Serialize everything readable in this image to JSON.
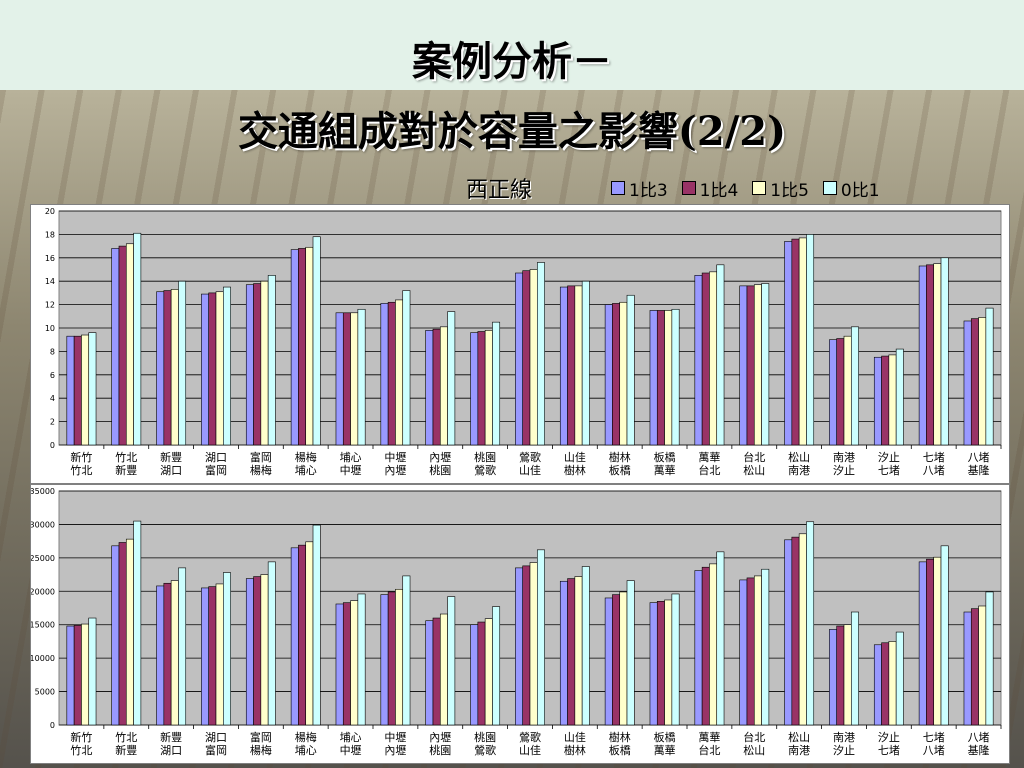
{
  "slide": {
    "title_line1": "案例分析－",
    "title_line2": "交通組成對於容量之影響(2/2)",
    "subtitle": "西正線"
  },
  "legend": [
    {
      "label": "1比3",
      "color": "#9999ff"
    },
    {
      "label": "1比4",
      "color": "#993366"
    },
    {
      "label": "1比5",
      "color": "#ffffcc"
    },
    {
      "label": "0比1",
      "color": "#ccffff"
    }
  ],
  "chart_data": [
    {
      "type": "bar",
      "categories": [
        [
          "新竹",
          "竹北"
        ],
        [
          "竹北",
          "新豐"
        ],
        [
          "新豐",
          "湖口"
        ],
        [
          "湖口",
          "富岡"
        ],
        [
          "富岡",
          "楊梅"
        ],
        [
          "楊梅",
          "埔心"
        ],
        [
          "埔心",
          "中壢"
        ],
        [
          "中壢",
          "內壢"
        ],
        [
          "內壢",
          "桃園"
        ],
        [
          "桃園",
          "鶯歌"
        ],
        [
          "鶯歌",
          "山佳"
        ],
        [
          "山佳",
          "樹林"
        ],
        [
          "樹林",
          "板橋"
        ],
        [
          "板橋",
          "萬華"
        ],
        [
          "萬華",
          "台北"
        ],
        [
          "台北",
          "松山"
        ],
        [
          "松山",
          "南港"
        ],
        [
          "南港",
          "汐止"
        ],
        [
          "汐止",
          "七堵"
        ],
        [
          "七堵",
          "八堵"
        ],
        [
          "八堵",
          "基隆"
        ]
      ],
      "series": [
        {
          "name": "1比3",
          "values": [
            9.3,
            16.8,
            13.1,
            12.9,
            13.7,
            16.7,
            11.3,
            12.1,
            9.8,
            9.6,
            14.7,
            13.5,
            12.0,
            11.5,
            14.5,
            13.6,
            17.4,
            9.0,
            7.5,
            15.3,
            10.6
          ]
        },
        {
          "name": "1比4",
          "values": [
            9.3,
            17.0,
            13.2,
            13.0,
            13.8,
            16.8,
            11.3,
            12.2,
            9.9,
            9.7,
            14.9,
            13.6,
            12.1,
            11.5,
            14.7,
            13.6,
            17.6,
            9.1,
            7.6,
            15.4,
            10.8
          ]
        },
        {
          "name": "1比5",
          "values": [
            9.4,
            17.2,
            13.3,
            13.1,
            14.0,
            16.9,
            11.3,
            12.4,
            10.1,
            9.8,
            15.0,
            13.6,
            12.2,
            11.5,
            14.8,
            13.7,
            17.7,
            9.3,
            7.7,
            15.5,
            10.9
          ]
        },
        {
          "name": "0比1",
          "values": [
            9.6,
            18.1,
            14.0,
            13.5,
            14.5,
            17.8,
            11.6,
            13.2,
            11.4,
            10.5,
            15.6,
            14.0,
            12.8,
            11.6,
            15.4,
            13.8,
            18.0,
            10.1,
            8.2,
            16.0,
            11.7
          ]
        }
      ],
      "ylim": [
        0,
        20
      ],
      "yticks": [
        "0",
        "2",
        "4",
        "6",
        "8",
        "10",
        "12",
        "14",
        "16",
        "18",
        "20"
      ],
      "grid": true
    },
    {
      "type": "bar",
      "categories": [
        [
          "新竹",
          "竹北"
        ],
        [
          "竹北",
          "新豐"
        ],
        [
          "新豐",
          "湖口"
        ],
        [
          "湖口",
          "富岡"
        ],
        [
          "富岡",
          "楊梅"
        ],
        [
          "楊梅",
          "埔心"
        ],
        [
          "埔心",
          "中壢"
        ],
        [
          "中壢",
          "內壢"
        ],
        [
          "內壢",
          "桃園"
        ],
        [
          "桃園",
          "鶯歌"
        ],
        [
          "鶯歌",
          "山佳"
        ],
        [
          "山佳",
          "樹林"
        ],
        [
          "樹林",
          "板橋"
        ],
        [
          "板橋",
          "萬華"
        ],
        [
          "萬華",
          "台北"
        ],
        [
          "台北",
          "松山"
        ],
        [
          "松山",
          "南港"
        ],
        [
          "南港",
          "汐止"
        ],
        [
          "汐止",
          "七堵"
        ],
        [
          "七堵",
          "八堵"
        ],
        [
          "八堵",
          "基隆"
        ]
      ],
      "series": [
        {
          "name": "1比3",
          "values": [
            14800,
            26800,
            20800,
            20500,
            21900,
            26500,
            18100,
            19500,
            15600,
            15000,
            23500,
            21500,
            19000,
            18300,
            23100,
            21700,
            27700,
            14300,
            12000,
            24400,
            16900
          ]
        },
        {
          "name": "1比4",
          "values": [
            14900,
            27300,
            21200,
            20700,
            22200,
            26900,
            18300,
            19900,
            16000,
            15400,
            23800,
            21900,
            19500,
            18500,
            23600,
            22000,
            28100,
            14800,
            12300,
            24800,
            17400
          ]
        },
        {
          "name": "1比5",
          "values": [
            15100,
            27800,
            21600,
            21100,
            22500,
            27400,
            18600,
            20300,
            16600,
            15900,
            24300,
            22200,
            19900,
            18700,
            24100,
            22300,
            28600,
            15000,
            12500,
            25100,
            17800
          ]
        },
        {
          "name": "0比1",
          "values": [
            16000,
            30500,
            23500,
            22800,
            24400,
            29900,
            19600,
            22300,
            19200,
            17700,
            26200,
            23700,
            21600,
            19600,
            25900,
            23300,
            30400,
            16900,
            13900,
            26800,
            19900
          ]
        }
      ],
      "ylim": [
        0,
        35000
      ],
      "yticks": [
        "0",
        "5000",
        "10000",
        "15000",
        "20000",
        "25000",
        "30000",
        "35000"
      ],
      "grid": true
    }
  ]
}
